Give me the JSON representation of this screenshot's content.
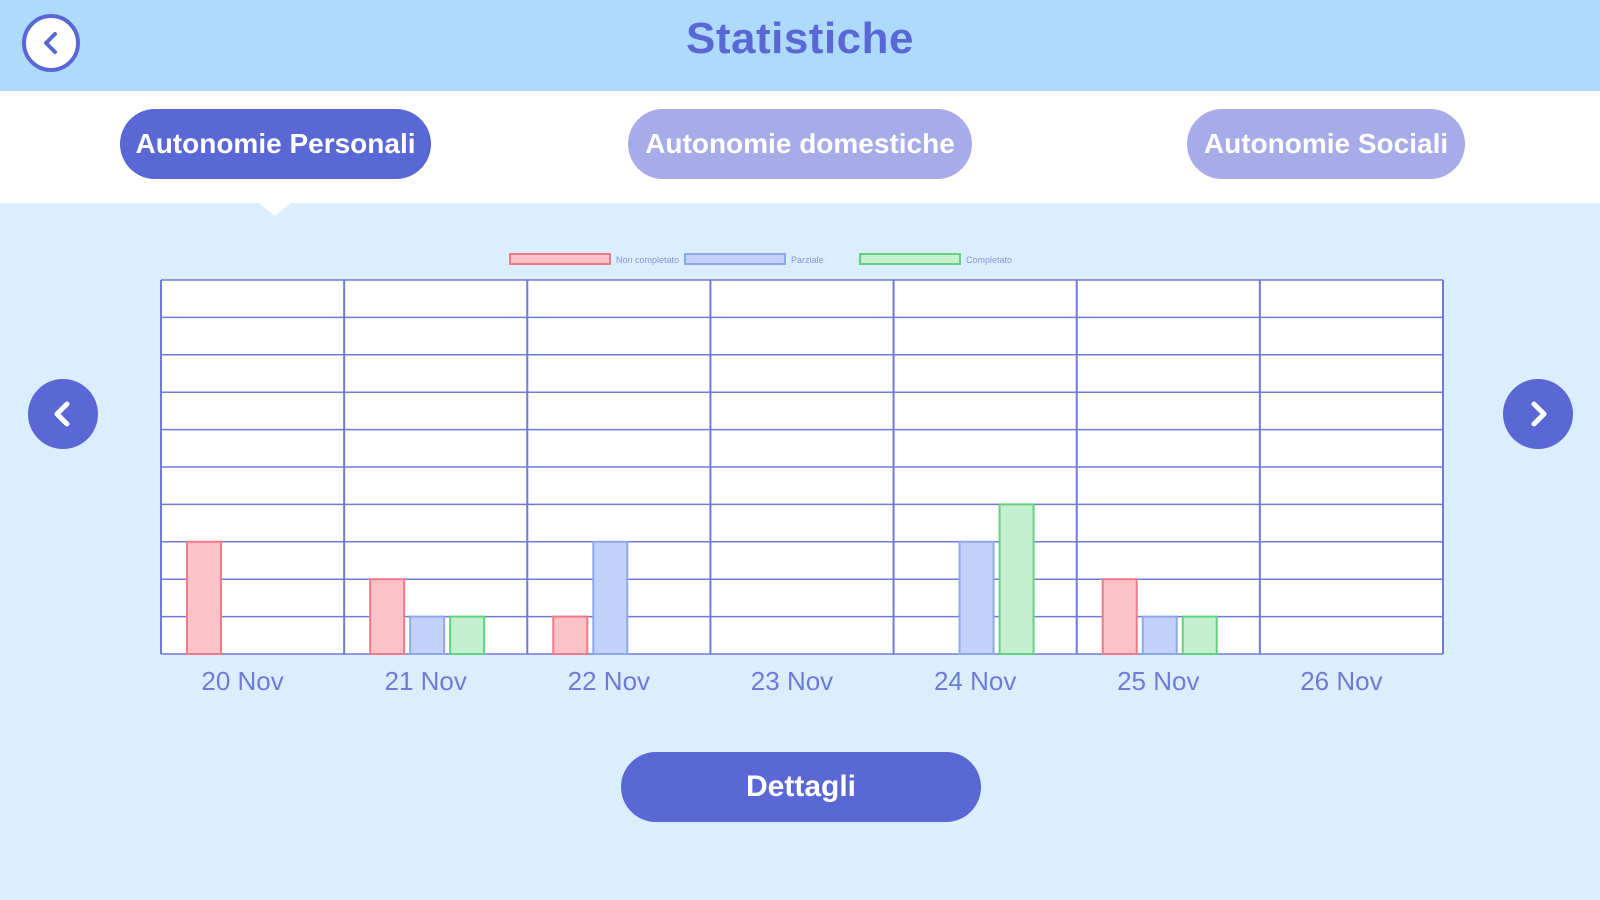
{
  "header": {
    "title": "Statistiche"
  },
  "tabs": [
    {
      "label": "Autonomie Personali",
      "active": true
    },
    {
      "label": "Autonomie domestiche",
      "active": false
    },
    {
      "label": "Autonomie Sociali",
      "active": false
    }
  ],
  "icons": {
    "back": "chevron-left-icon",
    "prev": "chevron-left-icon",
    "next": "chevron-right-icon"
  },
  "colors": {
    "primary": "#5a68d6",
    "tab_inactive": "#a7abe8",
    "not_completed": "#f07b88",
    "not_completed_fill": "#fbc2c8",
    "partial": "#8ea8ee",
    "partial_fill": "#c2d2fa",
    "completed": "#63d27f",
    "completed_fill": "#c4f0cf"
  },
  "chart_data": {
    "type": "bar",
    "categories": [
      "20 Nov",
      "21 Nov",
      "22 Nov",
      "23 Nov",
      "24 Nov",
      "25 Nov",
      "26 Nov"
    ],
    "ylim": [
      0,
      10
    ],
    "grid": true,
    "legend_position": "top-center",
    "series": [
      {
        "name": "Non completato",
        "values": [
          3,
          2,
          1,
          0,
          0,
          2,
          0
        ]
      },
      {
        "name": "Parziale",
        "values": [
          0,
          1,
          3,
          0,
          3,
          1,
          0
        ]
      },
      {
        "name": "Completato",
        "values": [
          0,
          1,
          0,
          0,
          4,
          1,
          0
        ]
      }
    ]
  },
  "footer": {
    "details_label": "Dettagli"
  }
}
